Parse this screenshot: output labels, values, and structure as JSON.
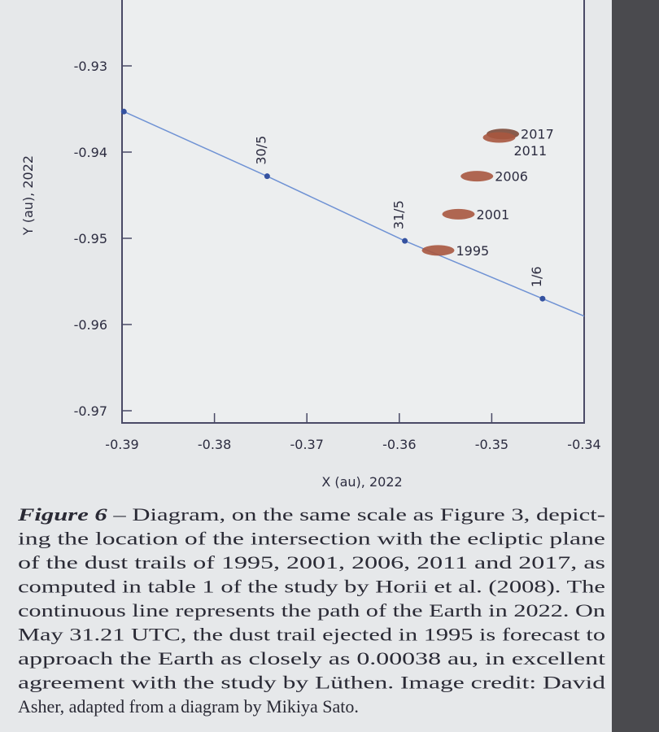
{
  "chart_data": {
    "type": "line",
    "x_label": "X (au), 2022",
    "y_label": "Y (au), 2022",
    "xlim": [
      -0.39,
      -0.34
    ],
    "ylim": [
      -0.97,
      -0.9225
    ],
    "xticks": [
      -0.39,
      -0.38,
      -0.37,
      -0.36,
      -0.35,
      -0.34
    ],
    "yticks": [
      -0.97,
      -0.96,
      -0.95,
      -0.94,
      -0.93
    ],
    "series": [
      {
        "color": "#6f92d4",
        "x": [
          -0.3898,
          -0.3743,
          -0.3594,
          -0.3445
        ],
        "values": [
          -0.9353,
          -0.9428,
          -0.9503,
          -0.957
        ],
        "point_labels": [
          null,
          "30/5",
          "31/5",
          "1/6"
        ]
      }
    ],
    "trails": {
      "color": "#a9563f",
      "x": [
        -0.3488,
        -0.3492,
        -0.3516,
        -0.3536,
        -0.3558
      ],
      "y": [
        -0.9379,
        -0.9383,
        -0.9428,
        -0.9472,
        -0.9514
      ],
      "labels": [
        "2017",
        "2011",
        "2006",
        "2001",
        "1995"
      ]
    }
  },
  "caption": {
    "label": "Figure 6",
    "lines": [
      " – Diagram, on the same scale as Figure 3, depict-",
      "ing the location of the intersection with the ecliptic plane",
      "of the dust trails of 1995, 2001, 2006, 2011 and 2017, as",
      "computed in table 1 of the study by Horii et al. (2008). The",
      "continuous line represents the path of the Earth in 2022. On",
      "May 31.21 UTC, the dust trail ejected in 1995 is forecast to",
      "approach the Earth as closely as 0.00038 au, in excellent",
      "agreement with the study by Lüthen. Image credit: David",
      "Asher, adapted from a diagram by Mikiya Sato."
    ]
  }
}
